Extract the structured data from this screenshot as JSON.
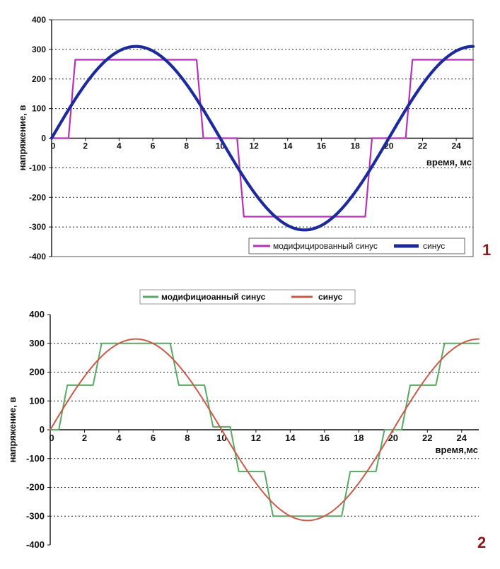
{
  "chart_data": [
    {
      "type": "line",
      "panel_label": "1",
      "xlabel": "время, мс",
      "ylabel": "напряжение, в",
      "xlim": [
        0,
        25
      ],
      "ylim": [
        -400,
        400
      ],
      "x_ticks": [
        "0",
        "2",
        "4",
        "6",
        "8",
        "10",
        "12",
        "14",
        "16",
        "18",
        "20",
        "22",
        "24"
      ],
      "y_ticks": [
        "400",
        "300",
        "200",
        "100",
        "0",
        "-100",
        "-200",
        "-300",
        "-400"
      ],
      "grid": "horizontal-dotted",
      "legend_position": "bottom-right",
      "series": [
        {
          "name": "модифицированный синус",
          "color": "#b531b8",
          "x": [
            0,
            1.0,
            1.4,
            8.6,
            9.0,
            11.0,
            11.4,
            18.6,
            19.0,
            21.0,
            21.4,
            25
          ],
          "y": [
            0,
            0,
            265,
            265,
            0,
            0,
            -265,
            -265,
            0,
            0,
            265,
            265
          ]
        },
        {
          "name": "синус",
          "color": "#1c2a9c",
          "function": "310*sin(2*pi*50*t)",
          "amplitude": 310,
          "frequency_hz": 50
        }
      ]
    },
    {
      "type": "line",
      "panel_label": "2",
      "xlabel": "время,мс",
      "ylabel": "напряжение, в",
      "xlim": [
        0,
        25
      ],
      "ylim": [
        -400,
        400
      ],
      "x_ticks": [
        "0",
        "2",
        "4",
        "6",
        "8",
        "10",
        "12",
        "14",
        "16",
        "18",
        "20",
        "22",
        "24"
      ],
      "y_ticks": [
        "400",
        "300",
        "200",
        "100",
        "0",
        "-100",
        "-200",
        "-300",
        "-400"
      ],
      "grid": "horizontal-dotted",
      "legend_position": "top",
      "series": [
        {
          "name": "модифициоанный синус",
          "color": "#5aa864",
          "x": [
            0,
            0.5,
            1.0,
            2.5,
            3.0,
            7.0,
            7.5,
            9.0,
            9.5,
            10.5,
            11.0,
            12.5,
            13.0,
            17.0,
            17.5,
            19.0,
            19.5,
            20.5,
            21.0,
            22.5,
            23.0,
            25
          ],
          "y": [
            0,
            0,
            155,
            155,
            300,
            300,
            155,
            155,
            10,
            10,
            -145,
            -145,
            -300,
            -300,
            -145,
            -145,
            0,
            0,
            155,
            155,
            300,
            300
          ]
        },
        {
          "name": "синус",
          "color": "#c95a4a",
          "function": "315*sin(2*pi*50*t)",
          "amplitude": 315,
          "frequency_hz": 50
        }
      ]
    }
  ]
}
